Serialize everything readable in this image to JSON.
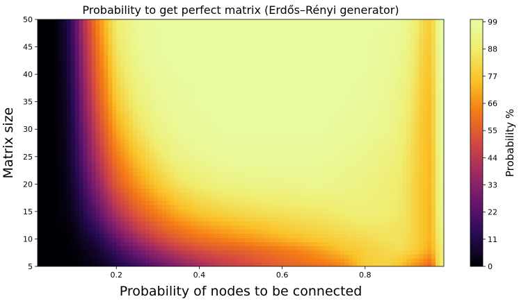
{
  "chart_data": {
    "type": "heatmap",
    "title": "Probability to get perfect matrix (Erdős–Rényi generator)",
    "xlabel": "Probability of nodes to be connected",
    "ylabel": "Matrix size",
    "xlim": [
      0.01,
      0.99
    ],
    "ylim": [
      5,
      50
    ],
    "x_ticks": [
      0.2,
      0.4,
      0.6,
      0.8
    ],
    "x_tick_labels": [
      "0.2",
      "0.4",
      "0.6",
      "0.8"
    ],
    "y_ticks": [
      5,
      10,
      15,
      20,
      25,
      30,
      35,
      40,
      45,
      50
    ],
    "y_tick_labels": [
      "5",
      "10",
      "15",
      "20",
      "25",
      "30",
      "35",
      "40",
      "45",
      "50"
    ],
    "colorbar": {
      "label": "Probability %",
      "colormap": "inferno",
      "ticks": [
        0,
        11,
        22,
        33,
        44,
        55,
        66,
        77,
        88,
        99
      ],
      "tick_labels": [
        "0",
        "11",
        "22",
        "33",
        "44",
        "55",
        "66",
        "77",
        "88",
        "99"
      ],
      "range": [
        0,
        100
      ]
    },
    "grid": false,
    "x": [
      0.02,
      0.05,
      0.08,
      0.1,
      0.12,
      0.15,
      0.18,
      0.2,
      0.25,
      0.3,
      0.35,
      0.4,
      0.45,
      0.5,
      0.55,
      0.6,
      0.65,
      0.7,
      0.75,
      0.8,
      0.85,
      0.88,
      0.9,
      0.92,
      0.94,
      0.96,
      0.98
    ],
    "series": [
      {
        "y": 5,
        "values": [
          0,
          0,
          0,
          0,
          1,
          3,
          6,
          9,
          16,
          24,
          32,
          38,
          44,
          48,
          52,
          56,
          58,
          60,
          64,
          78,
          80,
          76,
          70,
          66,
          62,
          56,
          88
        ]
      },
      {
        "y": 8,
        "values": [
          0,
          0,
          0,
          1,
          3,
          6,
          12,
          17,
          28,
          38,
          46,
          51,
          54,
          56,
          59,
          62,
          65,
          70,
          76,
          79,
          82,
          83,
          82,
          79,
          74,
          70,
          88
        ]
      },
      {
        "y": 10,
        "values": [
          0,
          0,
          0,
          2,
          5,
          10,
          18,
          24,
          38,
          48,
          55,
          60,
          63,
          66,
          69,
          72,
          75,
          78,
          80,
          82,
          85,
          85,
          83,
          80,
          76,
          72,
          90
        ]
      },
      {
        "y": 12,
        "values": [
          0,
          0,
          1,
          3,
          8,
          15,
          25,
          32,
          46,
          55,
          62,
          67,
          70,
          73,
          75,
          78,
          80,
          82,
          84,
          86,
          86,
          85,
          84,
          80,
          76,
          72,
          92
        ]
      },
      {
        "y": 15,
        "values": [
          0,
          0,
          2,
          6,
          12,
          22,
          34,
          42,
          55,
          64,
          72,
          77,
          80,
          82,
          84,
          85,
          86,
          87,
          89,
          90,
          89,
          87,
          85,
          80,
          76,
          72,
          94
        ]
      },
      {
        "y": 20,
        "values": [
          0,
          0,
          3,
          9,
          18,
          32,
          46,
          54,
          67,
          77,
          85,
          89,
          92,
          93,
          94,
          94,
          95,
          95,
          94,
          92,
          90,
          88,
          85,
          80,
          76,
          73,
          95
        ]
      },
      {
        "y": 25,
        "values": [
          0,
          0,
          4,
          12,
          23,
          40,
          54,
          62,
          76,
          86,
          93,
          96,
          97,
          98,
          98,
          98,
          98,
          97,
          96,
          95,
          92,
          90,
          86,
          81,
          76,
          73,
          96
        ]
      },
      {
        "y": 30,
        "values": [
          0,
          0,
          5,
          14,
          27,
          46,
          60,
          70,
          84,
          93,
          97,
          98,
          99,
          99,
          99,
          99,
          99,
          99,
          98,
          97,
          95,
          92,
          88,
          82,
          76,
          74,
          97
        ]
      },
      {
        "y": 35,
        "values": [
          0,
          0,
          6,
          16,
          31,
          51,
          66,
          77,
          90,
          96,
          98,
          99,
          99,
          99,
          99,
          99,
          99,
          99,
          99,
          98,
          96,
          94,
          90,
          84,
          77,
          74,
          97
        ]
      },
      {
        "y": 40,
        "values": [
          0,
          0,
          7,
          18,
          35,
          55,
          70,
          82,
          94,
          98,
          99,
          99,
          99,
          99,
          99,
          99,
          99,
          99,
          99,
          99,
          97,
          95,
          92,
          86,
          78,
          76,
          98
        ]
      },
      {
        "y": 45,
        "values": [
          0,
          0,
          8,
          20,
          38,
          58,
          74,
          86,
          96,
          99,
          99,
          99,
          99,
          99,
          99,
          99,
          99,
          99,
          99,
          99,
          98,
          96,
          94,
          88,
          80,
          77,
          98
        ]
      },
      {
        "y": 50,
        "values": [
          0,
          0,
          9,
          22,
          41,
          62,
          78,
          89,
          97,
          99,
          99,
          99,
          99,
          99,
          99,
          99,
          99,
          99,
          99,
          99,
          99,
          97,
          95,
          90,
          82,
          78,
          99
        ]
      }
    ]
  }
}
